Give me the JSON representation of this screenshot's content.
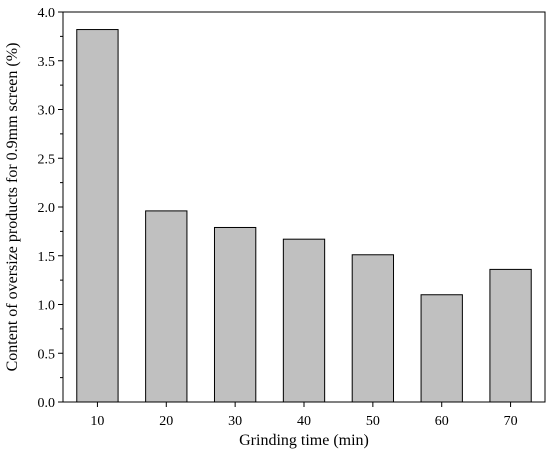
{
  "chart_data": {
    "type": "bar",
    "title": "",
    "xlabel": "Grinding time (min)",
    "ylabel": "Content of oversize products for 0.9mm screen (%)",
    "categories": [
      "10",
      "20",
      "30",
      "40",
      "50",
      "60",
      "70"
    ],
    "values": [
      3.82,
      1.96,
      1.79,
      1.67,
      1.51,
      1.1,
      1.36
    ],
    "ylim": [
      0,
      4.0
    ],
    "yticks": [
      "0.0",
      "0.5",
      "1.0",
      "1.5",
      "2.0",
      "2.5",
      "3.0",
      "3.5",
      "4.0"
    ],
    "bar_color": "#c0c0c0",
    "grid": false,
    "legend": false
  }
}
